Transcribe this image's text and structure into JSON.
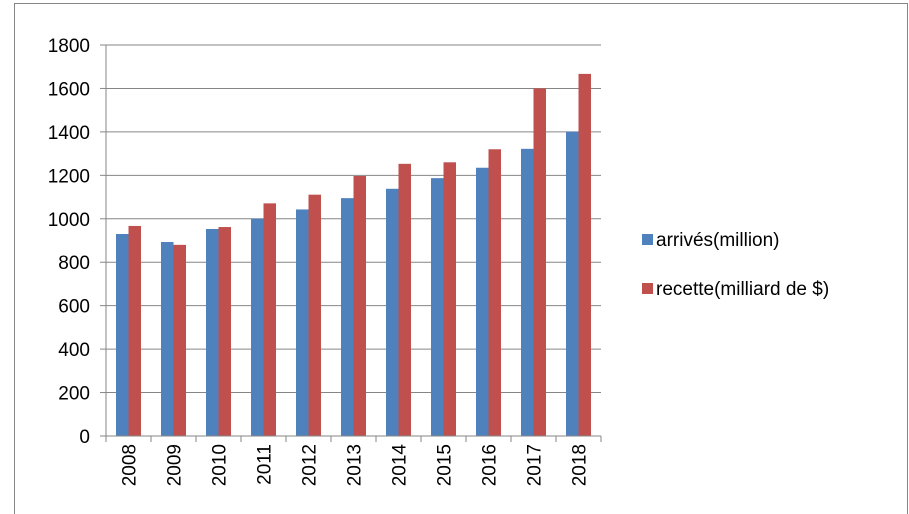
{
  "chart_data": {
    "type": "bar",
    "title": "",
    "xlabel": "",
    "ylabel": "",
    "categories": [
      "2008",
      "2009",
      "2010",
      "2011",
      "2012",
      "2013",
      "2014",
      "2015",
      "2016",
      "2017",
      "2018"
    ],
    "series": [
      {
        "name": "arrivés(million)",
        "color": "#4f81bd",
        "values": [
          930,
          893,
          953,
          1000,
          1043,
          1095,
          1138,
          1187,
          1235,
          1322,
          1401
        ]
      },
      {
        "name": "recette(milliard de $)",
        "color": "#c0504d",
        "values": [
          967,
          880,
          962,
          1071,
          1111,
          1197,
          1253,
          1260,
          1320,
          1600,
          1667
        ]
      }
    ],
    "ylim": [
      0,
      1800
    ],
    "yticks": [
      0,
      200,
      400,
      600,
      800,
      1000,
      1200,
      1400,
      1600,
      1800
    ],
    "grid": "horizontal",
    "legend": "right"
  }
}
